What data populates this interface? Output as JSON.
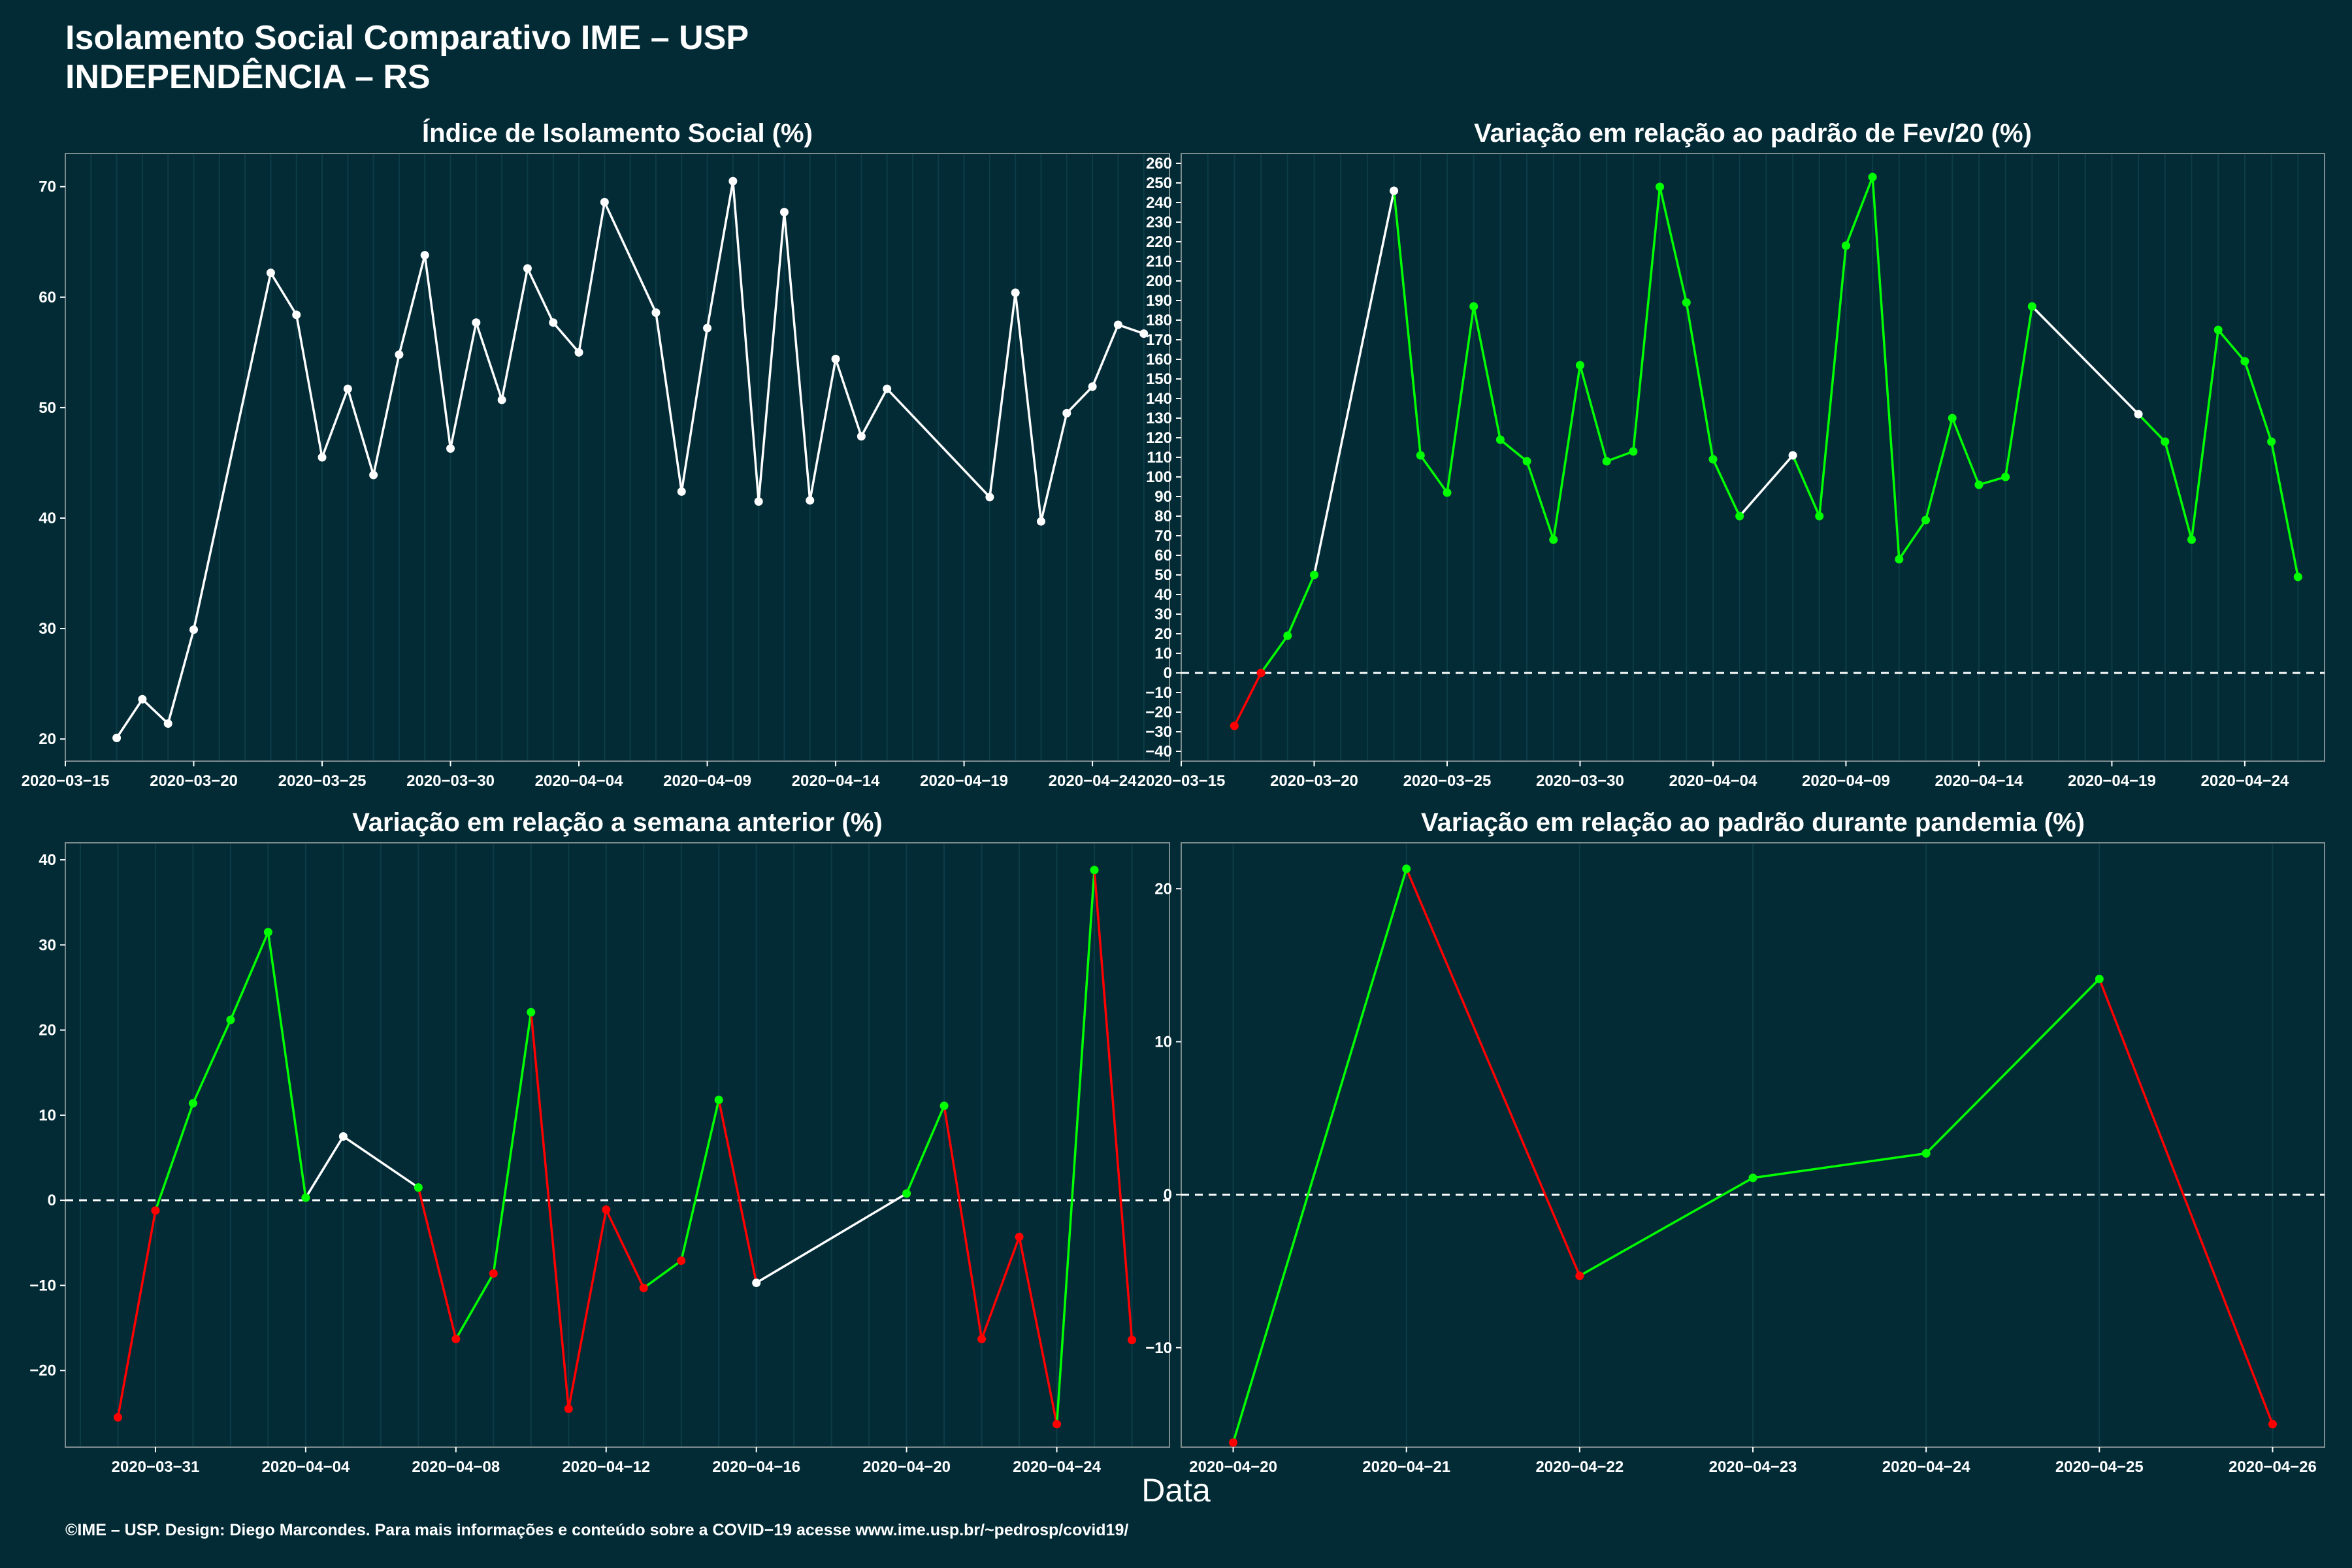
{
  "header": {
    "title_line1": "Isolamento Social Comparativo IME – USP",
    "title_line2": "INDEPENDÊNCIA – RS"
  },
  "x_axis_label": "Data",
  "footer": "©IME – USP. Design: Diego Marcondes. Para mais informações e conteúdo sobre a COVID−19 acesse www.ime.usp.br/~pedrosp/covid19/",
  "colors": {
    "background": "#022b36",
    "up": "#00ff00",
    "down": "#ff0000",
    "neutral": "#ffffff"
  },
  "chart_data": [
    {
      "type": "line",
      "title": "Índice de Isolamento Social (%)",
      "xlim": [
        "2020-03-15",
        "2020-04-27"
      ],
      "ylim": [
        18,
        73
      ],
      "x_ticks": [
        "2020-03-15",
        "2020-03-20",
        "2020-03-25",
        "2020-03-30",
        "2020-04-04",
        "2020-04-09",
        "2020-04-14",
        "2020-04-19",
        "2020-04-24"
      ],
      "y_ticks": [
        20,
        30,
        40,
        50,
        60,
        70
      ],
      "series": [
        {
          "x": [
            "2020-03-17",
            "2020-03-18",
            "2020-03-19",
            "2020-03-20",
            "2020-03-23",
            "2020-03-24",
            "2020-03-25",
            "2020-03-26",
            "2020-03-27",
            "2020-03-28",
            "2020-03-29",
            "2020-03-30",
            "2020-03-31",
            "2020-04-01",
            "2020-04-02",
            "2020-04-03",
            "2020-04-04",
            "2020-04-05",
            "2020-04-07",
            "2020-04-08",
            "2020-04-09",
            "2020-04-10",
            "2020-04-11",
            "2020-04-12",
            "2020-04-13",
            "2020-04-14",
            "2020-04-15",
            "2020-04-16",
            "2020-04-20",
            "2020-04-21",
            "2020-04-22",
            "2020-04-23",
            "2020-04-24",
            "2020-04-25",
            "2020-04-26"
          ],
          "values": [
            20.1,
            23.6,
            21.4,
            29.9,
            62.2,
            58.4,
            45.5,
            51.7,
            43.9,
            54.8,
            63.8,
            46.3,
            57.7,
            50.7,
            62.6,
            57.7,
            55.0,
            68.6,
            58.6,
            42.4,
            57.2,
            70.5,
            41.5,
            67.7,
            41.6,
            54.4,
            47.4,
            51.7,
            41.9,
            60.4,
            39.7,
            49.5,
            51.9,
            57.5,
            56.7
          ]
        }
      ]
    },
    {
      "type": "line",
      "title": "Variação em relação ao padrão de Fev/20 (%)",
      "xlim": [
        "2020-03-15",
        "2020-04-27"
      ],
      "ylim": [
        -45,
        265
      ],
      "x_ticks": [
        "2020-03-15",
        "2020-03-20",
        "2020-03-25",
        "2020-03-30",
        "2020-04-04",
        "2020-04-09",
        "2020-04-14",
        "2020-04-19",
        "2020-04-24"
      ],
      "y_ticks": [
        -40,
        -30,
        -20,
        -10,
        0,
        10,
        20,
        30,
        40,
        50,
        60,
        70,
        80,
        90,
        100,
        110,
        120,
        130,
        140,
        150,
        160,
        170,
        180,
        190,
        200,
        210,
        220,
        230,
        240,
        250,
        260
      ],
      "reference_line": 0,
      "series": [
        {
          "x": [
            "2020-03-17",
            "2020-03-18",
            "2020-03-19",
            "2020-03-20",
            "2020-03-23",
            "2020-03-24",
            "2020-03-25",
            "2020-03-26",
            "2020-03-27",
            "2020-03-28",
            "2020-03-29",
            "2020-03-30",
            "2020-03-31",
            "2020-04-01",
            "2020-04-02",
            "2020-04-03",
            "2020-04-04",
            "2020-04-05",
            "2020-04-07",
            "2020-04-08",
            "2020-04-09",
            "2020-04-10",
            "2020-04-11",
            "2020-04-12",
            "2020-04-13",
            "2020-04-14",
            "2020-04-15",
            "2020-04-16",
            "2020-04-20",
            "2020-04-21",
            "2020-04-22",
            "2020-04-23",
            "2020-04-24",
            "2020-04-25",
            "2020-04-26"
          ],
          "values": [
            -27,
            0,
            19,
            50,
            246,
            111,
            92,
            187,
            119,
            108,
            68,
            157,
            108,
            113,
            248,
            189,
            109,
            80,
            111,
            80,
            218,
            253,
            58,
            78,
            130,
            96,
            100,
            187,
            132,
            118,
            68,
            175,
            159,
            118,
            49
          ],
          "segment_colors": [
            "down",
            "up",
            "up",
            "neutral",
            "up",
            "up",
            "up",
            "up",
            "up",
            "up",
            "up",
            "up",
            "up",
            "up",
            "up",
            "up",
            "up",
            "neutral",
            "up",
            "up",
            "up",
            "up",
            "up",
            "up",
            "up",
            "up",
            "up",
            "neutral",
            "up",
            "up",
            "up",
            "up",
            "up",
            "up"
          ]
        }
      ]
    },
    {
      "type": "line",
      "title": "Variação em relação a semana anterior (%)",
      "xlim": [
        "2020-03-28.6",
        "2020-04-27"
      ],
      "ylim": [
        -29,
        42
      ],
      "x_ticks": [
        "2020-03-31",
        "2020-04-04",
        "2020-04-08",
        "2020-04-12",
        "2020-04-16",
        "2020-04-20",
        "2020-04-24"
      ],
      "y_ticks": [
        -20,
        -10,
        0,
        10,
        20,
        30,
        40
      ],
      "reference_line": 0,
      "series": [
        {
          "x": [
            "2020-03-30",
            "2020-03-31",
            "2020-04-01",
            "2020-04-02",
            "2020-04-03",
            "2020-04-04",
            "2020-04-05",
            "2020-04-07",
            "2020-04-08",
            "2020-04-09",
            "2020-04-10",
            "2020-04-11",
            "2020-04-12",
            "2020-04-13",
            "2020-04-14",
            "2020-04-15",
            "2020-04-16",
            "2020-04-20",
            "2020-04-21",
            "2020-04-22",
            "2020-04-23",
            "2020-04-24",
            "2020-04-25",
            "2020-04-26"
          ],
          "values": [
            -25.5,
            -1.2,
            11.4,
            21.2,
            31.5,
            0.3,
            7.5,
            1.5,
            -16.3,
            -8.6,
            22.1,
            -24.5,
            -1.1,
            -10.3,
            -7.1,
            11.8,
            -9.7,
            0.8,
            11.1,
            -16.3,
            -4.3,
            -26.3,
            38.8,
            -16.4
          ],
          "segment_colors": [
            "down",
            "up",
            "up",
            "up",
            "up",
            "neutral",
            "neutral",
            "down",
            "up",
            "up",
            "down",
            "down",
            "down",
            "up",
            "up",
            "down",
            "neutral",
            "up",
            "down",
            "down",
            "down",
            "up",
            "down"
          ],
          "point_colors": [
            "down",
            "down",
            "up",
            "up",
            "up",
            "up",
            "neutral",
            "up",
            "down",
            "down",
            "up",
            "down",
            "down",
            "down",
            "down",
            "up",
            "neutral",
            "up",
            "up",
            "down",
            "down",
            "down",
            "up",
            "down"
          ]
        }
      ]
    },
    {
      "type": "line",
      "title": "Variação em relação ao padrão durante pandemia (%)",
      "xlim": [
        "2020-04-19.7",
        "2020-04-26.3"
      ],
      "ylim": [
        -16.5,
        23
      ],
      "x_ticks": [
        "2020-04-20",
        "2020-04-21",
        "2020-04-22",
        "2020-04-23",
        "2020-04-24",
        "2020-04-25",
        "2020-04-26"
      ],
      "y_ticks": [
        -10,
        0,
        10,
        20
      ],
      "reference_line": 0,
      "series": [
        {
          "x": [
            "2020-04-20",
            "2020-04-21",
            "2020-04-22",
            "2020-04-23",
            "2020-04-24",
            "2020-04-25",
            "2020-04-26"
          ],
          "values": [
            -16.2,
            21.3,
            -5.3,
            1.1,
            2.7,
            14.1,
            -15.0
          ],
          "segment_colors": [
            "up",
            "down",
            "up",
            "up",
            "up",
            "down"
          ],
          "point_colors": [
            "down",
            "up",
            "down",
            "up",
            "up",
            "up",
            "down"
          ]
        }
      ]
    }
  ]
}
